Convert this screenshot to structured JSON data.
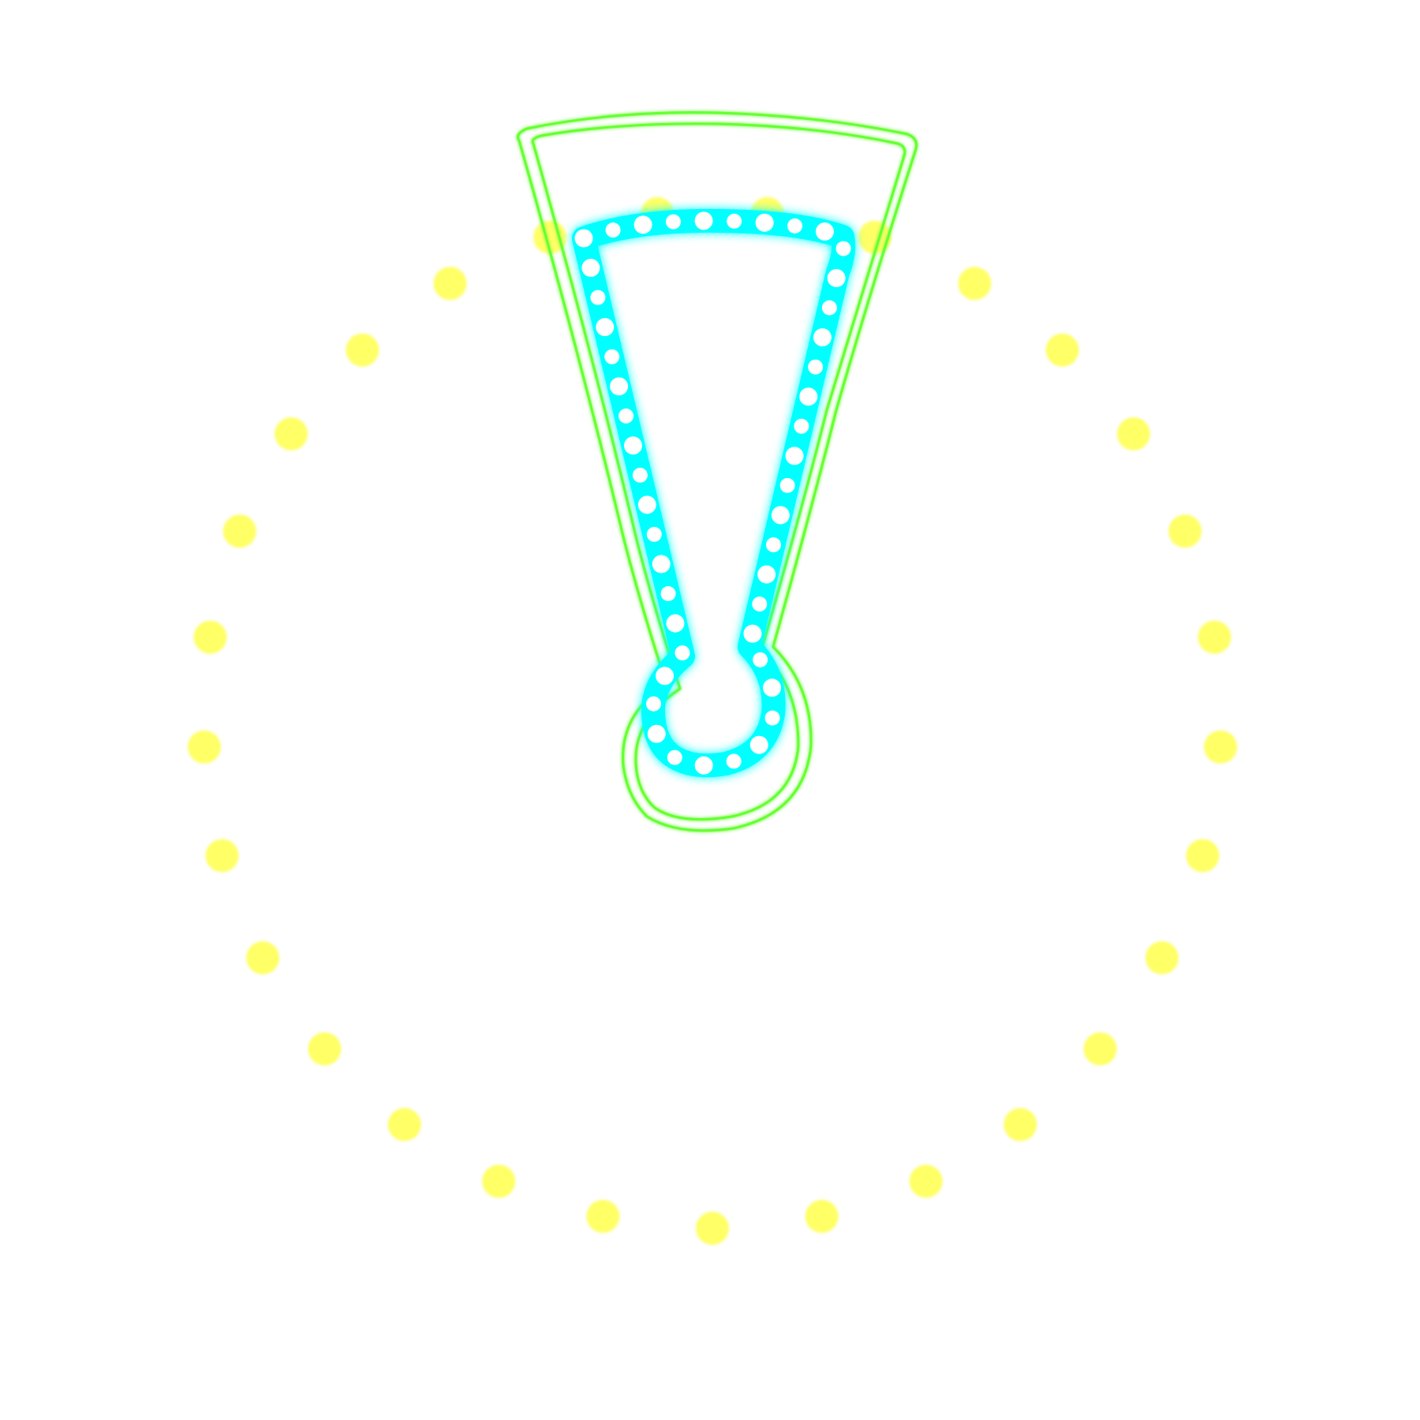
{
  "illustration": {
    "subject": "exclamation-mark-icon",
    "style": "neon-sign",
    "colors": {
      "background": "#ffffff",
      "dot_ring": "#ffff66",
      "outer_outline": "#66ff33",
      "inner_tube": "#00ffff",
      "bulbs": "#ffffff"
    }
  }
}
